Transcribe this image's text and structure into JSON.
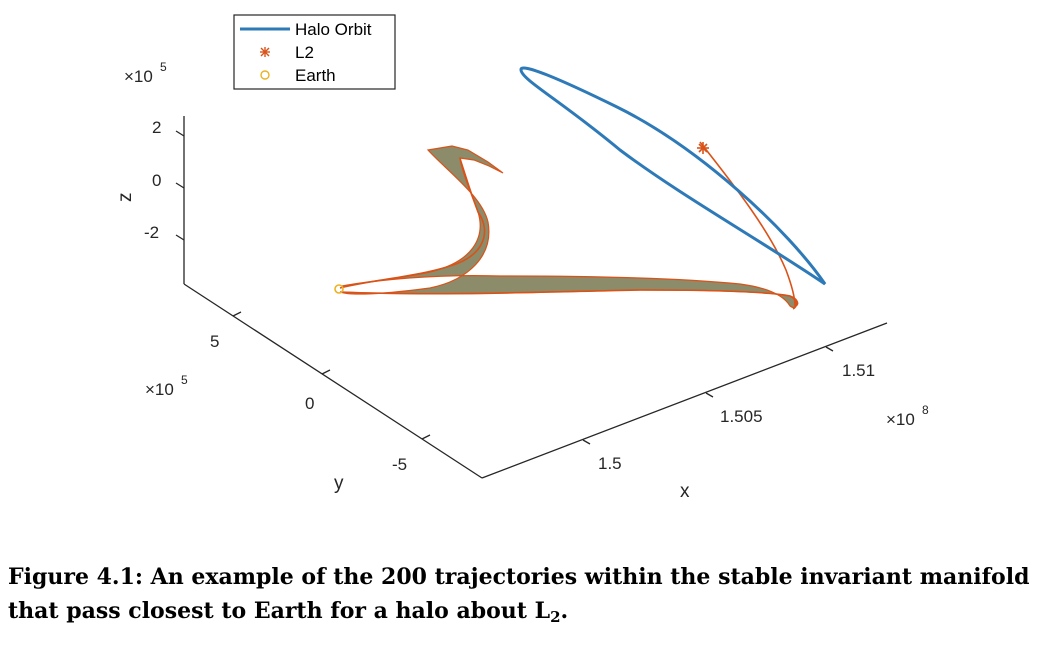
{
  "chart_data": {
    "type": "line",
    "projection": "3d",
    "xlabel": "x",
    "ylabel": "y",
    "zlabel": "z",
    "x_ticks": [
      "1.5",
      "1.505",
      "1.51"
    ],
    "y_ticks": [
      "-5",
      "0",
      "5"
    ],
    "z_ticks": [
      "2",
      "0",
      "-2"
    ],
    "x_exponent": "8",
    "y_exponent": "5",
    "z_exponent": "5",
    "legend": {
      "placement": "top-left",
      "entries": [
        {
          "label": "Halo Orbit",
          "marker": "line",
          "color": "#2E7AB8"
        },
        {
          "label": "L2",
          "marker": "asterisk",
          "color": "#D95319"
        },
        {
          "label": "Earth",
          "marker": "circle",
          "color": "#EDB120"
        }
      ]
    },
    "colors": {
      "halo": "#2E7AB8",
      "manifold_edge": "#D95319",
      "manifold_fill": "#8C8C6A",
      "l2": "#D95319",
      "earth": "#EDB120"
    }
  },
  "caption": {
    "prefix": "Figure 4.1: An example of the 200 trajectories within the stable invariant manifold that pass closest to Earth for a halo about L",
    "subscript": "2",
    "suffix": "."
  }
}
